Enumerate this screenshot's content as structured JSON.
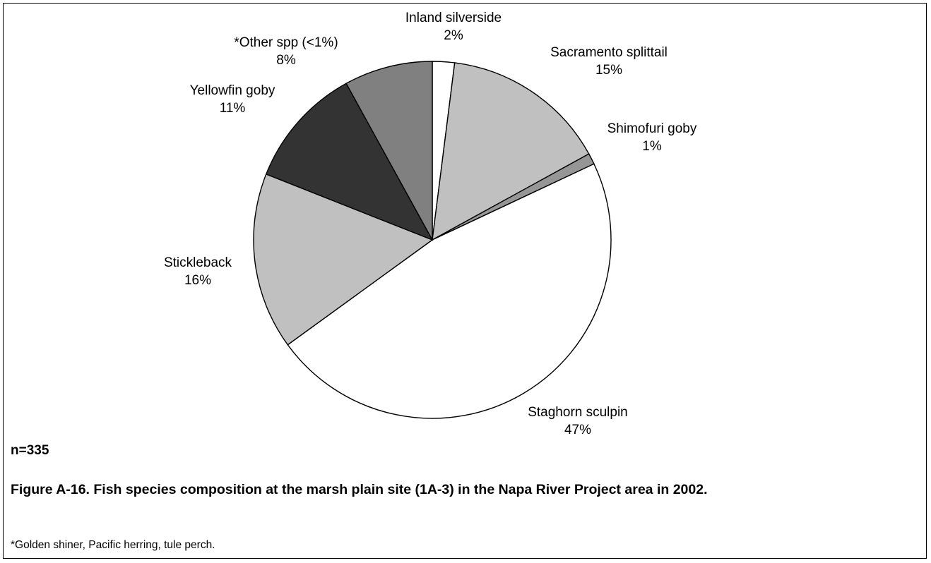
{
  "chart_data": {
    "type": "pie",
    "title": "",
    "slices": [
      {
        "label": "Inland silverside",
        "value": 2,
        "pct_label": "2%",
        "color": "#ffffff"
      },
      {
        "label": "Sacramento splittail",
        "value": 15,
        "pct_label": "15%",
        "color": "#c0c0c0"
      },
      {
        "label": "Shimofuri goby",
        "value": 1,
        "pct_label": "1%",
        "color": "#969696"
      },
      {
        "label": "Staghorn sculpin",
        "value": 47,
        "pct_label": "47%",
        "color": "#ffffff"
      },
      {
        "label": "Stickleback",
        "value": 16,
        "pct_label": "16%",
        "color": "#c0c0c0"
      },
      {
        "label": "Yellowfin goby",
        "value": 11,
        "pct_label": "11%",
        "color": "#333333"
      },
      {
        "label": "*Other spp (<1%)",
        "value": 8,
        "pct_label": "8%",
        "color": "#808080"
      }
    ],
    "start": "12 o'clock",
    "direction": "clockwise",
    "legend": "none"
  },
  "sample_size": "n=335",
  "caption": "Figure A-16. Fish species composition at the marsh plain site (1A-3) in the Napa River Project area in 2002.",
  "footnote": "*Golden shiner, Pacific herring, tule perch."
}
